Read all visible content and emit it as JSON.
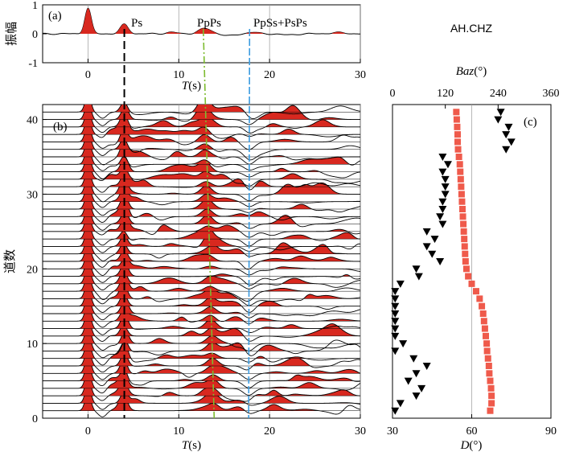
{
  "chart_data": [
    {
      "panel": "(a)",
      "type": "line",
      "ylabel": "振幅",
      "xlabel_var": "T",
      "xlabel_unit": "(s)",
      "xlim": [
        -5,
        30
      ],
      "ylim": [
        -1,
        1
      ],
      "xticks": [
        0,
        10,
        20,
        30
      ],
      "yticks": [
        -1,
        0,
        1
      ],
      "phases": [
        {
          "label": "Ps",
          "t_top": 4,
          "t_bottom": 4,
          "color": "#000000"
        },
        {
          "label": "PpPs",
          "t_top": 12.7,
          "t_bottom": 13.9,
          "color": "#7dbb2f"
        },
        {
          "label": "PpSs+PsPs",
          "t_top": 17.8,
          "t_bottom": 17.7,
          "color": "#3a9be0"
        }
      ],
      "stack_pulses": [
        {
          "t": 0,
          "amp": 0.88,
          "w": 0.35
        },
        {
          "t": 4,
          "amp": 0.32,
          "w": 0.45
        },
        {
          "t": 9.2,
          "amp": 0.05,
          "w": 0.6
        },
        {
          "t": 12.9,
          "amp": 0.18,
          "w": 0.7
        },
        {
          "t": 15.6,
          "amp": -0.07,
          "w": 0.7
        },
        {
          "t": 18.1,
          "amp": 0.05,
          "w": 0.6
        },
        {
          "t": 22.0,
          "amp": -0.04,
          "w": 0.8
        },
        {
          "t": 27.5,
          "amp": 0.04,
          "w": 0.8
        }
      ]
    },
    {
      "panel": "(b)",
      "type": "line",
      "ylabel": "道数",
      "xlabel_var": "T",
      "xlabel_unit": "(s)",
      "xlim": [
        -5,
        30
      ],
      "ylim": [
        0,
        42
      ],
      "xticks": [
        0,
        10,
        20,
        30
      ],
      "yticks": [
        0,
        10,
        20,
        30,
        40
      ],
      "trace_count": 41
    },
    {
      "panel": "(c)",
      "type": "scatter",
      "station": "AH.CHZ",
      "top_axis": {
        "label_var": "Baz",
        "label_unit": "(°)",
        "lim": [
          0,
          360
        ],
        "ticks": [
          0,
          120,
          240,
          360
        ]
      },
      "bottom_axis": {
        "label_var": "D",
        "label_unit": "(°)",
        "lim": [
          30,
          90
        ],
        "ticks": [
          30,
          60,
          90
        ]
      },
      "ylim": [
        0,
        42
      ],
      "series": [
        {
          "marker": "square",
          "color": "#ef5a4b",
          "axis": "Baz",
          "values": [
            222,
            225,
            225,
            224,
            222,
            220,
            219,
            217,
            215,
            214,
            212,
            210,
            208,
            206,
            203,
            198,
            190,
            180,
            172,
            168,
            166,
            165,
            164,
            163,
            162,
            161,
            160,
            159,
            158,
            157,
            156,
            155,
            154,
            153,
            151,
            149,
            148,
            148,
            147,
            146,
            145
          ]
        },
        {
          "marker": "triangle-down",
          "color": "#000000",
          "axis": "D",
          "values": [
            31,
            33,
            39,
            41,
            36,
            39,
            43,
            38,
            31,
            34,
            31,
            31,
            31,
            31,
            31,
            31,
            31,
            33,
            40,
            39,
            48,
            45,
            43,
            46,
            43,
            49,
            48,
            49,
            49,
            50,
            50,
            50,
            49,
            51,
            49,
            73,
            75,
            73,
            74,
            70,
            71
          ]
        }
      ]
    }
  ]
}
